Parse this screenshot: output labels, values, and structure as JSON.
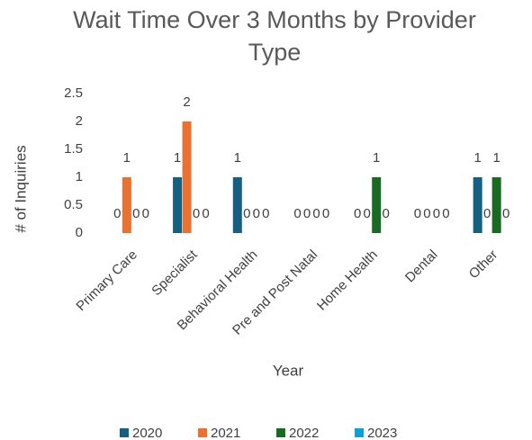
{
  "chart_data": {
    "type": "bar",
    "title": "Wait Time Over 3 Months by Provider Type",
    "x_label": "Year",
    "y_label": "# of Inquiries",
    "categories": [
      "Primary Care",
      "Specialist",
      "Behavioral Health",
      "Pre and Post Natal",
      "Home Health",
      "Dental",
      "Other"
    ],
    "series": [
      {
        "name": "2020",
        "color": "#156082",
        "values": [
          0,
          1,
          1,
          0,
          0,
          0,
          1
        ]
      },
      {
        "name": "2021",
        "color": "#e97132",
        "values": [
          1,
          2,
          0,
          0,
          0,
          0,
          0
        ]
      },
      {
        "name": "2022",
        "color": "#196b24",
        "values": [
          0,
          0,
          0,
          0,
          1,
          0,
          1
        ]
      },
      {
        "name": "2023",
        "color": "#0f9ed5",
        "values": [
          0,
          0,
          0,
          0,
          0,
          0,
          0
        ]
      }
    ],
    "ylim": [
      0,
      2.5
    ],
    "yticks": [
      0,
      0.5,
      1,
      1.5,
      2,
      2.5
    ],
    "grid": false,
    "legend": "bottom"
  }
}
